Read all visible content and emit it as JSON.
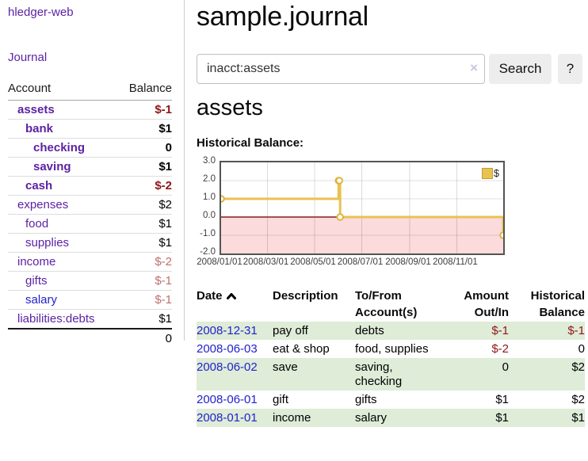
{
  "colors": {
    "accent_purple": "#5c22a3",
    "link_blue": "#2222cc",
    "negative_strong": "#8f1616",
    "negative_pale": "#bf6f6f",
    "row_stripe_green": "#deecd8",
    "series_gold": "#e8c253",
    "negative_region_pink": "#fbdbdb",
    "zero_line_red": "#8b1a1a"
  },
  "sidebar": {
    "brand": "hledger-web",
    "journal_link": "Journal",
    "accounts_table": {
      "account_header": "Account",
      "balance_header": "Balance",
      "rows": [
        {
          "name": "assets",
          "balance": "$-1",
          "indent": 1,
          "bold": true,
          "balance_class": "neg-strong"
        },
        {
          "name": "bank",
          "balance": "$1",
          "indent": 2,
          "bold": true,
          "balance_class": ""
        },
        {
          "name": "checking",
          "balance": "0",
          "indent": 3,
          "bold": true,
          "balance_class": ""
        },
        {
          "name": "saving",
          "balance": "$1",
          "indent": 3,
          "bold": true,
          "balance_class": ""
        },
        {
          "name": "cash",
          "balance": "$-2",
          "indent": 2,
          "bold": true,
          "balance_class": "neg-strong"
        },
        {
          "name": "expenses",
          "balance": "$2",
          "indent": 1,
          "bold": false,
          "balance_class": ""
        },
        {
          "name": "food",
          "balance": "$1",
          "indent": 2,
          "bold": false,
          "balance_class": ""
        },
        {
          "name": "supplies",
          "balance": "$1",
          "indent": 2,
          "bold": false,
          "balance_class": ""
        },
        {
          "name": "income",
          "balance": "$-2",
          "indent": 1,
          "bold": false,
          "balance_class": "neg-pale"
        },
        {
          "name": "gifts",
          "balance": "$-1",
          "indent": 2,
          "bold": false,
          "balance_class": "neg-pale"
        },
        {
          "name": "salary",
          "balance": "$-1",
          "indent": 2,
          "bold": false,
          "balance_class": "neg-pale",
          "link_blue": true
        },
        {
          "name": "liabilities:debts",
          "balance": "$1",
          "indent": 1,
          "bold": false,
          "balance_class": ""
        }
      ],
      "total": "0"
    }
  },
  "main": {
    "title": "sample.journal",
    "search": {
      "value": "inacct:assets",
      "clear_icon": "×",
      "search_button": "Search",
      "help_button": "?"
    },
    "account_heading": "assets",
    "chart_heading": "Historical Balance:"
  },
  "chart_data": {
    "type": "line",
    "title": "Historical Balance",
    "legend": {
      "label": "$",
      "position": "top-right"
    },
    "x_range": [
      "2008-01-01",
      "2008-12-31"
    ],
    "days_total": 365,
    "ylim": [
      -2.0,
      3.0
    ],
    "y_ticks": [
      "3.0",
      "2.0",
      "1.0",
      "0.0",
      "-1.0",
      "-2.0"
    ],
    "x_ticks": [
      {
        "day": 0,
        "label": "2008/01/01"
      },
      {
        "day": 60,
        "label": "2008/03/01"
      },
      {
        "day": 121,
        "label": "2008/05/01"
      },
      {
        "day": 182,
        "label": "2008/07/01"
      },
      {
        "day": 244,
        "label": "2008/09/01"
      },
      {
        "day": 305,
        "label": "2008/11/01"
      }
    ],
    "grid": true,
    "negative_region_shaded": true,
    "series": [
      {
        "name": "$",
        "color": "#e8c253",
        "step": true,
        "points": [
          {
            "day": 0,
            "date": "2008-01-01",
            "value": 1
          },
          {
            "day": 152,
            "date": "2008-06-01",
            "value": 2
          },
          {
            "day": 153,
            "date": "2008-06-02",
            "value": 2
          },
          {
            "day": 154,
            "date": "2008-06-03",
            "value": 0
          },
          {
            "day": 365,
            "date": "2008-12-31",
            "value": -1
          }
        ]
      }
    ]
  },
  "transactions": {
    "headers": {
      "date": "Date",
      "description": "Description",
      "tofrom_line1": "To/From",
      "tofrom_line2": "Account(s)",
      "amount_line1": "Amount",
      "amount_line2": "Out/In",
      "historical_line1": "Historical",
      "historical_line2": "Balance"
    },
    "sort": {
      "column": "date",
      "direction": "ascending",
      "icon": "chevron-up"
    },
    "rows": [
      {
        "date": "2008-12-31",
        "description": "pay off",
        "accounts": "debts",
        "amount": "$-1",
        "amount_negative": true,
        "balance": "$-1",
        "balance_negative": true,
        "striped": true
      },
      {
        "date": "2008-06-03",
        "description": "eat & shop",
        "accounts": "food, supplies",
        "amount": "$-2",
        "amount_negative": true,
        "balance": "0",
        "balance_negative": false,
        "striped": false
      },
      {
        "date": "2008-06-02",
        "description": "save",
        "accounts": "saving, checking",
        "amount": "0",
        "amount_negative": false,
        "balance": "$2",
        "balance_negative": false,
        "striped": true
      },
      {
        "date": "2008-06-01",
        "description": "gift",
        "accounts": "gifts",
        "amount": "$1",
        "amount_negative": false,
        "balance": "$2",
        "balance_negative": false,
        "striped": false
      },
      {
        "date": "2008-01-01",
        "description": "income",
        "accounts": "salary",
        "amount": "$1",
        "amount_negative": false,
        "balance": "$1",
        "balance_negative": false,
        "striped": true
      }
    ]
  }
}
